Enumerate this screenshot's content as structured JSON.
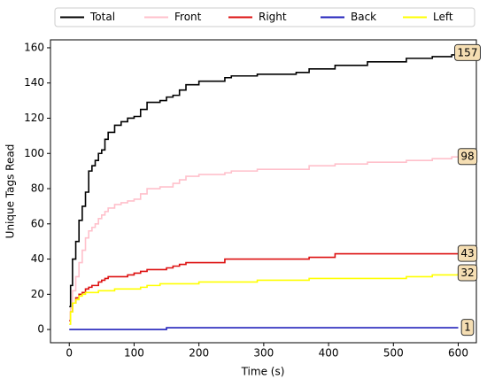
{
  "chart_data": {
    "type": "step",
    "xlabel": "Time (s)",
    "ylabel": "Unique Tags Read",
    "x": [
      0,
      2,
      5,
      10,
      15,
      20,
      25,
      30,
      35,
      40,
      45,
      50,
      55,
      60,
      70,
      80,
      90,
      100,
      110,
      120,
      140,
      150,
      160,
      170,
      180,
      200,
      240,
      250,
      290,
      350,
      370,
      410,
      460,
      520,
      560,
      590,
      600
    ],
    "series": [
      {
        "name": "Total",
        "color": "#000000",
        "values": [
          13,
          25,
          40,
          50,
          62,
          70,
          78,
          90,
          93,
          96,
          100,
          102,
          108,
          112,
          116,
          118,
          120,
          121,
          125,
          129,
          130,
          132,
          133,
          136,
          139,
          141,
          143,
          144,
          145,
          146,
          148,
          150,
          152,
          154,
          155,
          156,
          157
        ]
      },
      {
        "name": "Front",
        "color": "#ffc0cb",
        "values": [
          5,
          12,
          22,
          30,
          38,
          45,
          52,
          56,
          58,
          60,
          63,
          65,
          67,
          69,
          71,
          72,
          73,
          74,
          77,
          80,
          81,
          81,
          83,
          85,
          87,
          88,
          89,
          90,
          91,
          91,
          93,
          94,
          95,
          96,
          97,
          98,
          98
        ]
      },
      {
        "name": "Right",
        "color": "#dd1111",
        "values": [
          5,
          10,
          15,
          18,
          20,
          21,
          23,
          24,
          25,
          25,
          27,
          28,
          29,
          30,
          30,
          30,
          31,
          32,
          33,
          34,
          34,
          35,
          36,
          37,
          38,
          38,
          40,
          40,
          40,
          40,
          41,
          43,
          43,
          43,
          43,
          43,
          43
        ]
      },
      {
        "name": "Back",
        "color": "#2222bb",
        "values": [
          0,
          0,
          0,
          0,
          0,
          0,
          0,
          0,
          0,
          0,
          0,
          0,
          0,
          0,
          0,
          0,
          0,
          0,
          0,
          0,
          0,
          1,
          1,
          1,
          1,
          1,
          1,
          1,
          1,
          1,
          1,
          1,
          1,
          1,
          1,
          1,
          1
        ]
      },
      {
        "name": "Left",
        "color": "#ffff00",
        "values": [
          3,
          10,
          15,
          17,
          19,
          20,
          21,
          21,
          21,
          21,
          22,
          22,
          22,
          22,
          23,
          23,
          23,
          23,
          24,
          25,
          26,
          26,
          26,
          26,
          26,
          27,
          27,
          27,
          28,
          28,
          29,
          29,
          29,
          30,
          31,
          31,
          32
        ]
      }
    ],
    "xlim": [
      -29,
      628
    ],
    "ylim": [
      -7.5,
      164.5
    ],
    "xticks": [
      0,
      100,
      200,
      300,
      400,
      500,
      600
    ],
    "yticks": [
      0,
      20,
      40,
      60,
      80,
      100,
      120,
      140,
      160
    ],
    "legend": "top"
  }
}
